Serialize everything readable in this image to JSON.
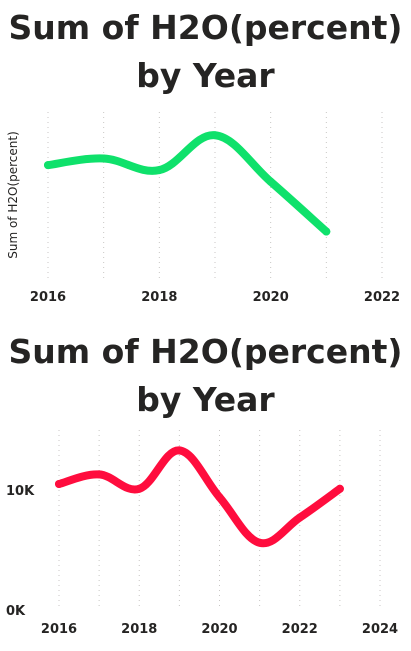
{
  "chart_data": [
    {
      "type": "line",
      "title": "Sum of H2O(percent) by Year",
      "xlabel": "",
      "ylabel": "Sum of H2O(percent)",
      "x": [
        2016,
        2017,
        2018,
        2019,
        2020,
        2021
      ],
      "series": [
        {
          "values": [
            0.68,
            0.72,
            0.65,
            0.86,
            0.58,
            0.28
          ]
        }
      ],
      "xlim": [
        2016,
        2022
      ],
      "x_ticks": [
        "2016",
        "2018",
        "2020",
        "2022"
      ],
      "y_ticks": [],
      "grid": "vertical dotted",
      "line_color": "#0fe16b",
      "legend": "none"
    },
    {
      "type": "line",
      "title": "Sum of H2O(percent) by Year",
      "xlabel": "",
      "ylabel": "",
      "x": [
        2016,
        2017,
        2018,
        2019,
        2020,
        2021,
        2022,
        2023
      ],
      "series": [
        {
          "values": [
            10500,
            11300,
            10100,
            13300,
            9400,
            5600,
            7700,
            10100
          ]
        }
      ],
      "xlim": [
        2016,
        2024
      ],
      "ylim": [
        0,
        15000
      ],
      "x_ticks": [
        "2016",
        "2018",
        "2020",
        "2022",
        "2024"
      ],
      "y_ticks": [
        {
          "value": 0,
          "label": "0K"
        },
        {
          "value": 10000,
          "label": "10K"
        }
      ],
      "grid": "vertical dotted",
      "line_color": "#ff0d3e",
      "legend": "none"
    }
  ]
}
